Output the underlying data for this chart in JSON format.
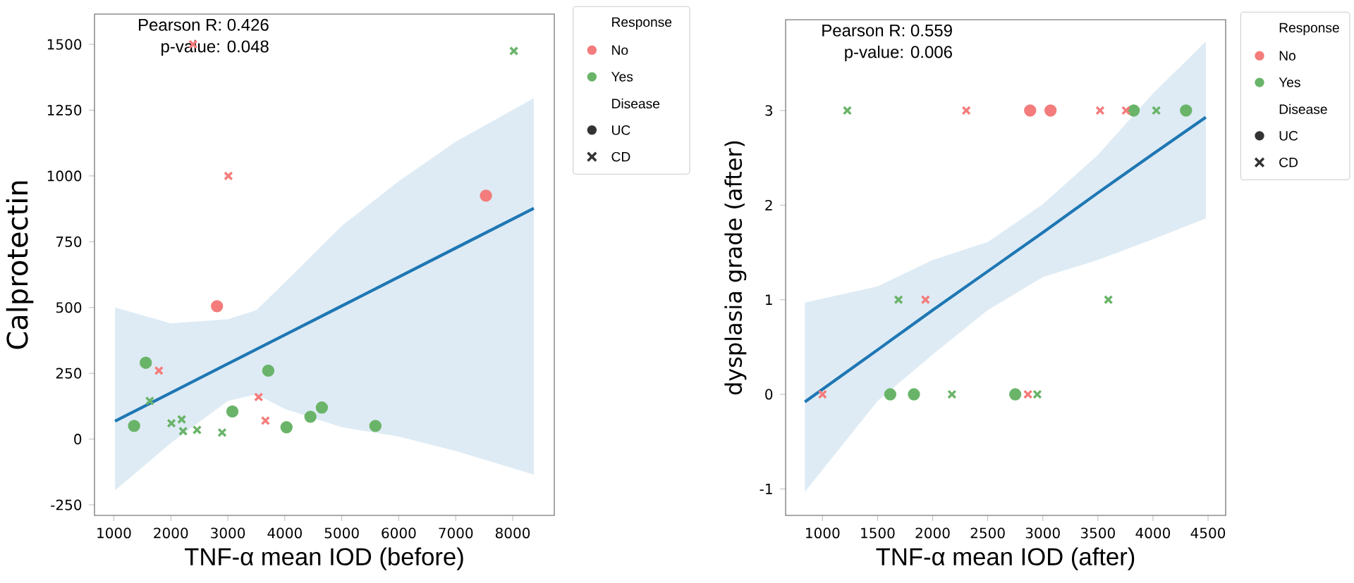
{
  "chart_data": [
    {
      "type": "scatter",
      "xlabel": "TNF-α mean IOD (before)",
      "ylabel": "Calprotectin",
      "legend_title": "Response",
      "legend": "right",
      "xlim": [
        660,
        8730
      ],
      "ylim": [
        -290,
        1615
      ],
      "xticks": [
        1000,
        2000,
        3000,
        4000,
        5000,
        6000,
        7000,
        8000
      ],
      "yticks": [
        -250,
        0,
        250,
        500,
        750,
        1000,
        1250,
        1500
      ],
      "annotations": [
        "Pearson R: 0.426",
        "p-value: 0.048",
        "Disease",
        "UC",
        "CD"
      ],
      "series": [
        {
          "name": "No",
          "color": "#f47c7c",
          "marker": "circle",
          "x": [
            2810,
            7530
          ],
          "values": [
            505,
            925
          ]
        },
        {
          "name": "Yes",
          "color": "#6ab46a",
          "marker": "circle",
          "x": [
            1355,
            1560,
            3080,
            3710,
            4030,
            4450,
            4650,
            5590
          ],
          "values": [
            50,
            290,
            105,
            260,
            45,
            85,
            120,
            50
          ]
        },
        {
          "color": "#f47c7c",
          "marker": "cross",
          "x": [
            2390,
            3010,
            1790,
            3540,
            3660
          ],
          "values": [
            1500,
            1000,
            260,
            160,
            70
          ]
        },
        {
          "color": "#6ab46a",
          "marker": "cross",
          "x": [
            1630,
            2010,
            2190,
            2215,
            2460,
            2900,
            8020
          ],
          "values": [
            145,
            60,
            75,
            30,
            35,
            25,
            1475
          ]
        },
        {
          "type": "line",
          "color": "#1f77b4",
          "marker": "none",
          "x": [
            1020,
            2000,
            3000,
            3500,
            4000,
            5000,
            6000,
            7000,
            8370
          ],
          "values": [
            68,
            176,
            286,
            341,
            396,
            506,
            616,
            726,
            877
          ],
          "lower": [
            -195,
            -15,
            145,
            170,
            115,
            45,
            10,
            -45,
            -135
          ],
          "upper": [
            500,
            440,
            455,
            490,
            595,
            810,
            980,
            1130,
            1295
          ]
        }
      ]
    },
    {
      "type": "scatter",
      "xlabel": "TNF-α mean IOD (after)",
      "ylabel": "dysplasia grade (after)",
      "legend_title": "Response",
      "legend": "right",
      "xlim": [
        665,
        4660
      ],
      "ylim": [
        -1.28,
        3.96
      ],
      "xticks": [
        1000,
        1500,
        2000,
        2500,
        3000,
        3500,
        4000,
        4500
      ],
      "yticks": [
        -1,
        0,
        1,
        2,
        3
      ],
      "annotations": [
        "Pearson R: 0.559",
        "p-value: 0.006",
        "Disease",
        "UC",
        "CD"
      ],
      "series": [
        {
          "name": "No",
          "color": "#f47c7c",
          "marker": "circle",
          "x": [
            2885,
            3070
          ],
          "values": [
            3,
            3
          ]
        },
        {
          "name": "Yes",
          "color": "#6ab46a",
          "marker": "circle",
          "x": [
            1615,
            1830,
            2750,
            3825,
            4300
          ],
          "values": [
            0,
            0,
            0,
            3,
            3
          ]
        },
        {
          "color": "#f47c7c",
          "marker": "cross",
          "x": [
            1000,
            1935,
            2305,
            3520,
            3755,
            2865
          ],
          "values": [
            0,
            1,
            3,
            3,
            3,
            0
          ]
        },
        {
          "color": "#6ab46a",
          "marker": "cross",
          "x": [
            1225,
            1690,
            2175,
            2950,
            3595,
            4030
          ],
          "values": [
            3,
            1,
            0,
            0,
            1,
            3
          ]
        },
        {
          "type": "line",
          "color": "#1f77b4",
          "marker": "none",
          "x": [
            840,
            1500,
            2000,
            2500,
            3000,
            3500,
            4000,
            4480
          ],
          "values": [
            -0.08,
            0.47,
            0.89,
            1.3,
            1.71,
            2.13,
            2.54,
            2.93
          ],
          "lower": [
            -1.03,
            -0.07,
            0.42,
            0.89,
            1.24,
            1.42,
            1.64,
            1.86
          ],
          "upper": [
            0.97,
            1.14,
            1.42,
            1.61,
            2.01,
            2.53,
            3.18,
            3.73
          ]
        }
      ]
    }
  ]
}
